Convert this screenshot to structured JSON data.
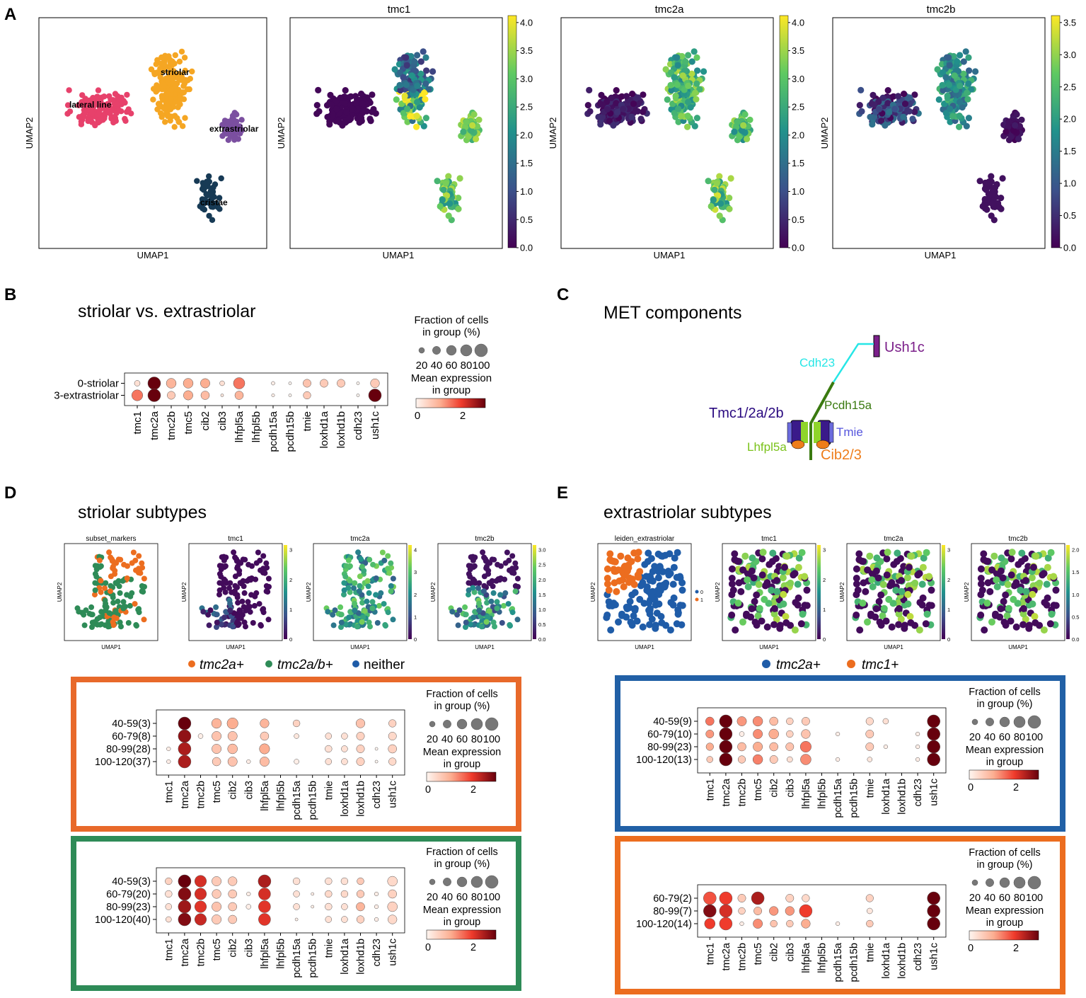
{
  "figure": {
    "panel_labels": [
      "A",
      "B",
      "C",
      "D",
      "E"
    ],
    "genes": [
      "tmc1",
      "tmc2a",
      "tmc2b",
      "tmc5",
      "cib2",
      "cib3",
      "lhfpl5a",
      "lhfpl5b",
      "pcdh15a",
      "pcdh15b",
      "tmie",
      "loxhd1a",
      "loxhd1b",
      "cdh23",
      "ush1c"
    ],
    "dot_legend": {
      "fraction_title_1": "Fraction of cells",
      "fraction_title_2": "in group (%)",
      "fraction_ticks": [
        "20",
        "40",
        "60",
        "80",
        "100"
      ],
      "mean_title_1": "Mean expression",
      "mean_title_2": "in group",
      "cbar_ticks": [
        "0",
        "2"
      ]
    }
  },
  "chart_data": [
    {
      "id": "A-cluster",
      "type": "scatter",
      "title": "",
      "xlabel": "UMAP1",
      "ylabel": "UMAP2",
      "cluster_labels": [
        "lateral line",
        "striolar",
        "extrastriolar",
        "cristae"
      ],
      "cluster_colors": [
        "#e7416b",
        "#f5a623",
        "#7b4fa0",
        "#173a55"
      ],
      "cluster_counts": [
        140,
        170,
        55,
        55
      ]
    },
    {
      "id": "A-tmc1",
      "type": "scatter",
      "title": "tmc1",
      "xlabel": "UMAP1",
      "ylabel": "UMAP2",
      "cbar_ticks": [
        "0.0",
        "0.5",
        "1.0",
        "1.5",
        "2.0",
        "2.5",
        "3.0",
        "3.5",
        "4.0"
      ],
      "colormap": "viridis"
    },
    {
      "id": "A-tmc2a",
      "type": "scatter",
      "title": "tmc2a",
      "xlabel": "UMAP1",
      "ylabel": "UMAP2",
      "cbar_ticks": [
        "0.0",
        "0.5",
        "1.0",
        "1.5",
        "2.0",
        "2.5",
        "3.0",
        "3.5",
        "4.0"
      ],
      "colormap": "viridis"
    },
    {
      "id": "A-tmc2b",
      "type": "scatter",
      "title": "tmc2b",
      "xlabel": "UMAP1",
      "ylabel": "UMAP2",
      "cbar_ticks": [
        "0.0",
        "0.5",
        "1.0",
        "1.5",
        "2.0",
        "2.5",
        "3.0",
        "3.5"
      ],
      "colormap": "viridis"
    },
    {
      "id": "B",
      "type": "dotplot",
      "title": "striolar vs. extrastriolar",
      "rows": [
        "0-striolar",
        "3-extrastriolar"
      ],
      "fraction": [
        [
          20,
          100,
          60,
          60,
          55,
          15,
          80,
          0,
          8,
          5,
          40,
          40,
          40,
          5,
          50
        ],
        [
          75,
          100,
          40,
          55,
          45,
          5,
          45,
          0,
          6,
          5,
          35,
          0,
          0,
          5,
          100
        ]
      ],
      "mean": [
        [
          0.3,
          3,
          0.9,
          1.0,
          1.0,
          0.3,
          1.5,
          0,
          0.1,
          0,
          0.7,
          0.6,
          0.6,
          0,
          0.6
        ],
        [
          1.5,
          3,
          0.6,
          1.0,
          0.8,
          0.2,
          0.9,
          0,
          0.1,
          0,
          0.6,
          0,
          0,
          0,
          3
        ]
      ]
    },
    {
      "id": "D-umap",
      "type": "scatter",
      "subplot_titles": [
        "subset_markers",
        "tmc1",
        "tmc2a",
        "tmc2b"
      ],
      "xlabel": "UMAP1",
      "ylabel": "UMAP2",
      "cbar_ticks": [
        [
          "0",
          "1",
          "2",
          "3"
        ],
        [
          "0",
          "1",
          "2",
          "3",
          "4"
        ],
        [
          "0.0",
          "0.5",
          "1.0",
          "1.5",
          "2.0",
          "2.5",
          "3.0"
        ]
      ]
    },
    {
      "id": "E-umap",
      "type": "scatter",
      "subplot_titles": [
        "leiden_extrastriolar",
        "tmc1",
        "tmc2a",
        "tmc2b"
      ],
      "xlabel": "UMAP1",
      "ylabel": "UMAP2",
      "legend_entries": [
        "0",
        "1"
      ],
      "cbar_ticks": [
        [
          "0",
          "1",
          "2",
          "3"
        ],
        [
          "0",
          "1",
          "2",
          "3"
        ],
        [
          "0.0",
          "0.5",
          "1.0",
          "1.5",
          "2.0"
        ]
      ]
    },
    {
      "id": "D-orange",
      "type": "dotplot",
      "rows": [
        "40-59(3)",
        "60-79(8)",
        "80-99(28)",
        "100-120(37)"
      ],
      "fraction": [
        [
          0,
          100,
          0,
          60,
          75,
          0,
          50,
          0,
          30,
          0,
          0,
          0,
          50,
          0,
          35
        ],
        [
          0,
          100,
          15,
          55,
          55,
          0,
          45,
          0,
          15,
          0,
          25,
          25,
          40,
          0,
          40
        ],
        [
          10,
          100,
          0,
          55,
          60,
          0,
          65,
          0,
          0,
          0,
          30,
          25,
          40,
          5,
          45
        ],
        [
          10,
          100,
          0,
          45,
          55,
          10,
          55,
          0,
          15,
          0,
          25,
          25,
          40,
          5,
          35
        ]
      ],
      "mean": [
        [
          0,
          3,
          0,
          0.9,
          1.0,
          0,
          0.9,
          0,
          0.5,
          0,
          0,
          0,
          0.7,
          0,
          0.5
        ],
        [
          0,
          2.7,
          0.1,
          0.7,
          0.7,
          0,
          0.6,
          0,
          0.2,
          0,
          0.3,
          0.3,
          0.5,
          0,
          0.4
        ],
        [
          0.1,
          2.5,
          0,
          0.7,
          0.8,
          0,
          1.0,
          0,
          0,
          0,
          0.3,
          0.3,
          0.5,
          0,
          0.5
        ],
        [
          0.1,
          2.5,
          0,
          0.6,
          0.7,
          0.1,
          0.8,
          0,
          0.1,
          0,
          0.3,
          0.3,
          0.5,
          0,
          0.4
        ]
      ]
    },
    {
      "id": "D-green",
      "type": "dotplot",
      "rows": [
        "40-59(3)",
        "60-79(20)",
        "80-99(23)",
        "100-120(40)"
      ],
      "fraction": [
        [
          30,
          100,
          85,
          55,
          50,
          0,
          100,
          0,
          30,
          0,
          30,
          30,
          30,
          0,
          60
        ],
        [
          30,
          100,
          85,
          50,
          45,
          10,
          90,
          0,
          25,
          5,
          30,
          30,
          35,
          10,
          45
        ],
        [
          25,
          100,
          85,
          55,
          45,
          15,
          90,
          0,
          25,
          5,
          30,
          25,
          45,
          10,
          60
        ],
        [
          20,
          100,
          85,
          55,
          45,
          0,
          90,
          0,
          5,
          0,
          25,
          25,
          35,
          10,
          50
        ]
      ],
      "mean": [
        [
          0.5,
          3,
          2.2,
          0.6,
          0.6,
          0,
          2.5,
          0,
          0.3,
          0,
          0.3,
          0.3,
          0.6,
          0,
          0.4
        ],
        [
          0.3,
          2.8,
          2.2,
          0.6,
          0.6,
          0.1,
          2.2,
          0,
          0.3,
          0.1,
          0.4,
          0.4,
          0.6,
          0.1,
          0.5
        ],
        [
          0.3,
          2.6,
          2.1,
          0.7,
          0.6,
          0.1,
          2.1,
          0,
          0.3,
          0.1,
          0.3,
          0.3,
          0.9,
          0.1,
          0.5
        ],
        [
          0.3,
          2.8,
          2.3,
          0.6,
          0.6,
          0,
          2.1,
          0,
          0.1,
          0,
          0.3,
          0.3,
          0.5,
          0.1,
          0.4
        ]
      ]
    },
    {
      "id": "E-blue",
      "type": "dotplot",
      "rows": [
        "40-59(9)",
        "60-79(10)",
        "80-99(23)",
        "100-120(13)"
      ],
      "fraction": [
        [
          45,
          100,
          55,
          60,
          45,
          30,
          40,
          0,
          0,
          0,
          35,
          20,
          0,
          0,
          100
        ],
        [
          40,
          100,
          15,
          55,
          60,
          30,
          50,
          0,
          10,
          0,
          40,
          0,
          0,
          10,
          100
        ],
        [
          35,
          100,
          45,
          55,
          45,
          40,
          75,
          0,
          0,
          0,
          40,
          10,
          0,
          10,
          100
        ],
        [
          25,
          100,
          35,
          60,
          40,
          20,
          70,
          0,
          10,
          0,
          15,
          0,
          0,
          10,
          100
        ]
      ],
      "mean": [
        [
          1.5,
          3,
          1.2,
          1.3,
          0.8,
          0.5,
          0.6,
          0,
          0,
          0,
          0.4,
          0.3,
          0,
          0,
          3
        ],
        [
          1.2,
          3,
          0.1,
          1.3,
          1.0,
          0.5,
          0.7,
          0,
          0.1,
          0,
          0.6,
          0,
          0,
          0.1,
          3
        ],
        [
          1.0,
          3,
          0.8,
          1.0,
          0.8,
          0.7,
          1.5,
          0,
          0,
          0,
          0.6,
          0.1,
          0,
          0.1,
          3
        ],
        [
          0.6,
          3,
          0.6,
          1.4,
          0.6,
          0.3,
          1.3,
          0,
          0.1,
          0,
          0.2,
          0,
          0,
          0.1,
          3
        ]
      ]
    },
    {
      "id": "E-orange",
      "type": "dotplot",
      "rows": [
        "60-79(2)",
        "80-99(7)",
        "100-120(14)"
      ],
      "fraction": [
        [
          100,
          100,
          40,
          100,
          0,
          40,
          35,
          0,
          0,
          0,
          35,
          0,
          0,
          0,
          100
        ],
        [
          100,
          100,
          30,
          40,
          50,
          50,
          100,
          0,
          0,
          0,
          20,
          0,
          0,
          0,
          100
        ],
        [
          70,
          100,
          10,
          55,
          30,
          30,
          50,
          0,
          10,
          0,
          30,
          0,
          0,
          0,
          100
        ]
      ],
      "mean": [
        [
          1.8,
          2,
          0.6,
          2.5,
          0,
          0.5,
          0.4,
          0,
          0,
          0,
          0.5,
          0,
          0,
          0,
          3
        ],
        [
          2.8,
          2.2,
          0.5,
          0.8,
          1.2,
          1.2,
          2.0,
          0,
          0,
          0,
          0.2,
          0,
          0,
          0,
          3
        ],
        [
          2.0,
          2.0,
          0.1,
          1.3,
          0.7,
          0.6,
          1.0,
          0,
          0.1,
          0,
          0.6,
          0,
          0,
          0,
          3
        ]
      ]
    }
  ],
  "panelB": {
    "title": "striolar vs. extrastriolar"
  },
  "panelC": {
    "title": "MET components",
    "labels": {
      "ush1c": "Ush1c",
      "cdh23": "Cdh23",
      "tmc": "Tmc1/2a/2b",
      "pcdh15a": "Pcdh15a",
      "tmie": "Tmie",
      "lhfpl5a": "Lhfpl5a",
      "cib": "Cib2/3"
    },
    "colors": {
      "ush1c": "#7b1f8a",
      "cdh23": "#26e6e6",
      "tmc": "#2a0a80",
      "pcdh15a": "#3a7a10",
      "tmie": "#5555dd",
      "lhfpl5a": "#7ac21a",
      "cib": "#ee7d1a"
    }
  },
  "panelD": {
    "title": "striolar subtypes",
    "legend": [
      {
        "label": "tmc2a+",
        "color": "#ec6d1f"
      },
      {
        "label": "tmc2a/b+",
        "color": "#2e8b57"
      },
      {
        "label": "neither",
        "color": "#1f5ca8"
      }
    ],
    "box_colors": [
      "#e8692a",
      "#2e8b57"
    ]
  },
  "panelE": {
    "title": "extrastriolar subtypes",
    "legend": [
      {
        "label": "tmc2a+",
        "color": "#1f5ca8"
      },
      {
        "label": "tmc1+",
        "color": "#ec6d1f"
      }
    ],
    "box_colors": [
      "#2160a6",
      "#ec6d1f"
    ]
  }
}
